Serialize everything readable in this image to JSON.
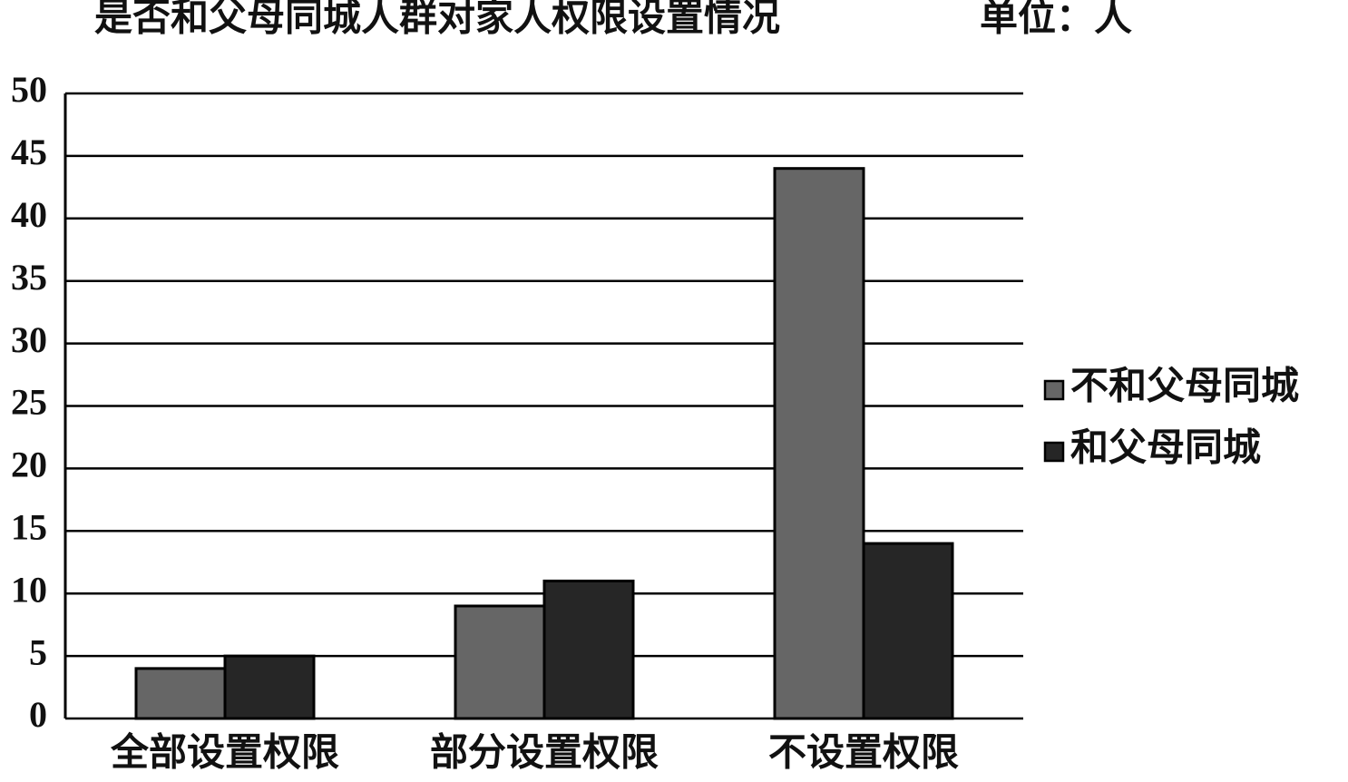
{
  "chart_data": {
    "type": "bar",
    "title": "是否和父母同城人群对家人权限设置情况",
    "unit_label": "单位：人",
    "categories": [
      "全部设置权限",
      "部分设置权限",
      "不设置权限"
    ],
    "series": [
      {
        "name": "不和父母同城",
        "color": "#666666",
        "values": [
          4,
          9,
          44
        ]
      },
      {
        "name": "和父母同城",
        "color": "#262626",
        "values": [
          5,
          11,
          14
        ]
      }
    ],
    "ylim": [
      0,
      50
    ],
    "yticks": [
      0,
      5,
      10,
      15,
      20,
      25,
      30,
      35,
      40,
      45,
      50
    ],
    "grid": true,
    "legend": "right"
  }
}
